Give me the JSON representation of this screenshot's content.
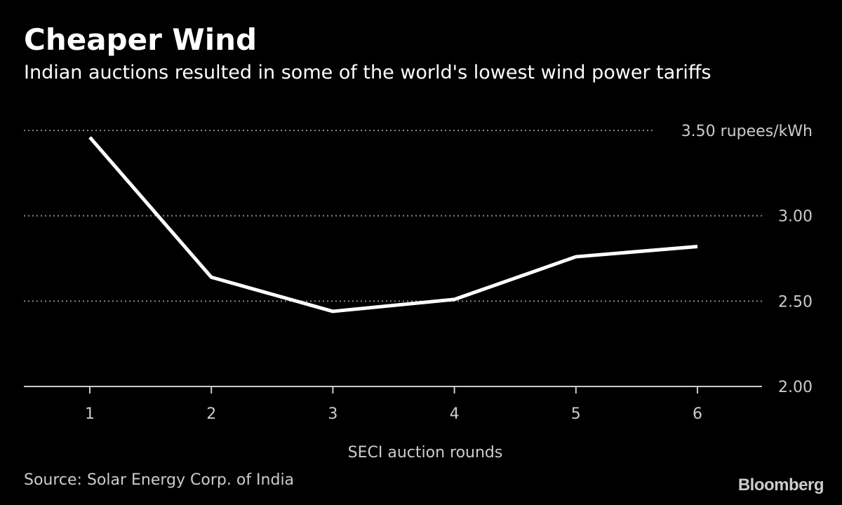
{
  "header": {
    "title": "Cheaper Wind",
    "subtitle": "Indian auctions resulted in some of the world's lowest wind power tariffs"
  },
  "footer": {
    "source": "Source: Solar Energy Corp. of India",
    "brand": "Bloomberg"
  },
  "colors": {
    "background": "#000000",
    "line": "#ffffff",
    "grid": "#888888",
    "text": "#cccccc"
  },
  "chart_data": {
    "type": "line",
    "title": "Cheaper Wind",
    "subtitle": "Indian auctions resulted in some of the world's lowest wind power tariffs",
    "xlabel": "SECI auction rounds",
    "ylabel": "rupees/kWh",
    "x": [
      1,
      2,
      3,
      4,
      5,
      6
    ],
    "x_tick_labels": [
      "1",
      "2",
      "3",
      "4",
      "5",
      "6"
    ],
    "series": [
      {
        "name": "Wind power tariff",
        "values": [
          3.46,
          2.64,
          2.44,
          2.51,
          2.76,
          2.82
        ]
      }
    ],
    "ylim": [
      2.0,
      3.5
    ],
    "y_ticks": [
      2.0,
      2.5,
      3.0,
      3.5
    ],
    "y_tick_labels": [
      "2.00",
      "2.50",
      "3.00",
      "3.50 rupees/kWh"
    ],
    "grid": true,
    "legend": "none"
  }
}
